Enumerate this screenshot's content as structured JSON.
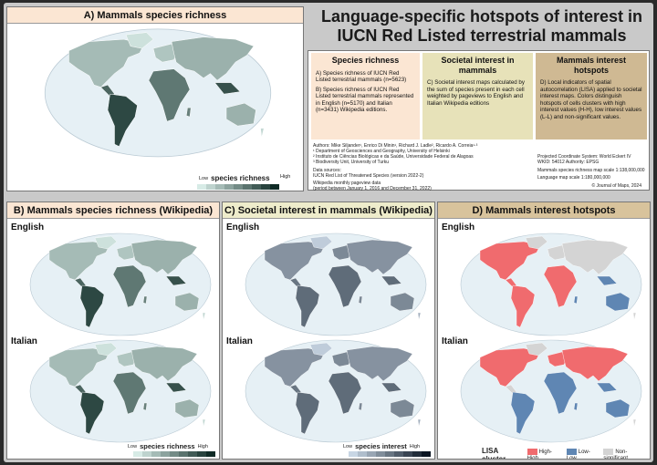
{
  "title": "Language-specific hotspots of interest in IUCN Red Listed terrestrial mammals",
  "panel_a": {
    "title": "A) Mammals species richness",
    "legend_title": "species richness",
    "low": "Low",
    "high": "High"
  },
  "info": {
    "col1": {
      "heading": "Species richness",
      "p1": "A) Species richness of IUCN Red Listed terrestrial mammals (n=5623)",
      "p2": "B) Species richness of IUCN Red Listed terrestrial mammals represented in English (n=5170) and Italian (n=3431) Wikipedia editions."
    },
    "col2": {
      "heading": "Societal interest in mammals",
      "p1": "C) Societal interest maps calculated by the sum of species present in each cell weighted by pageviews to English and Italian Wikipedia editions"
    },
    "col3": {
      "heading": "Mammals interest hotspots",
      "p1": "D) Local indicators of spatial autocorrelation (LISA) applied to societal interest maps. Colors distinguish hotspots of cells clusters with high interest values (H-H), low interest values (L-L) and non-significant values."
    },
    "authors": "Authors: Mike Siljander¹, Enrico Di Minin¹, Richard J. Ladle², Ricardo A. Correia¹·³",
    "aff1": "¹ Department of Geosciences and Geography, University of Helsinki",
    "aff2": "² Instituto de Ciências Biológicas e da Saúde, Universidade Federal de Alagoas",
    "aff3": "³ Biodiversity Unit, University of Turku",
    "ds_h": "Data sources:",
    "ds1": "IUCN Red List of Threatened Species (version 2022-2)",
    "ds2": "Wikipedia monthly pageview data",
    "ds3": "(period between January 1, 2016 and December 31, 2022)",
    "proj": "Projected Coordinate System: World Eckert IV",
    "wkid": "WKID: 54012 Authority: EPSG",
    "scale1": "Mammals species richness map scale 1:138,000,000",
    "scale2": "Language map scale 1:180,000,000",
    "copyright": "© Journal of Maps, 2024"
  },
  "panel_b": {
    "title": "B) Mammals species richness (Wikipedia)",
    "lang1": "English",
    "lang2": "Italian",
    "legend_title": "species richness",
    "low": "Low",
    "high": "High"
  },
  "panel_c": {
    "title": "C) Societal interest in mammals (Wikipedia)",
    "lang1": "English",
    "lang2": "Italian",
    "legend_title": "species interest",
    "low": "Low",
    "high": "High"
  },
  "panel_d": {
    "title": "D) Mammals interest hotspots",
    "lang1": "English",
    "lang2": "Italian",
    "legend_title": "LISA cluster",
    "hh": "High-High",
    "ll": "Low-Low",
    "ns": "Non-significant"
  },
  "colors": {
    "teal_light": "#d7ebe6",
    "teal_dark": "#0f2b26",
    "blue_light": "#c8d6e4",
    "blue_dark": "#0a1522",
    "lisa_hh": "#f06b6e",
    "lisa_ll": "#5f86b3",
    "lisa_ns": "#d4d4d4",
    "head_a": "#fbe6d3",
    "head_b": "#fbe6d3",
    "head_c": "#eeeccb",
    "head_d": "#d8c39c",
    "box1": "#fbe6d3",
    "box2": "#e7e2b9",
    "box3": "#cfb993"
  }
}
